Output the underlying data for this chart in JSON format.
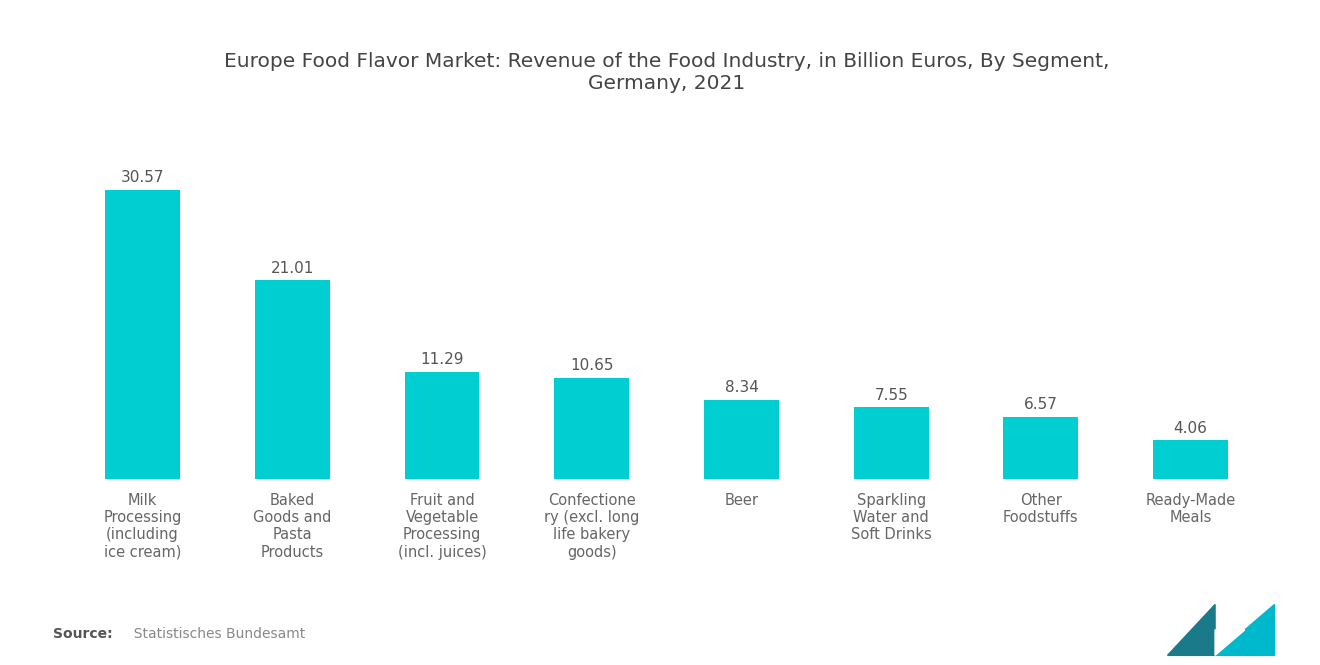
{
  "title": "Europe Food Flavor Market: Revenue of the Food Industry, in Billion Euros, By Segment,\nGermany, 2021",
  "categories": [
    "Milk\nProcessing\n(including\nice cream)",
    "Baked\nGoods and\nPasta\nProducts",
    "Fruit and\nVegetable\nProcessing\n(incl. juices)",
    "Confectione\nry (excl. long\nlife bakery\ngoods)",
    "Beer",
    "Sparkling\nWater and\nSoft Drinks",
    "Other\nFoodstuffs",
    "Ready-Made\nMeals"
  ],
  "values": [
    30.57,
    21.01,
    11.29,
    10.65,
    8.34,
    7.55,
    6.57,
    4.06
  ],
  "bar_color": "#00CED1",
  "value_labels": [
    "30.57",
    "21.01",
    "11.29",
    "10.65",
    "8.34",
    "7.55",
    "6.57",
    "4.06"
  ],
  "source_bold": "Source:",
  "source_text": "  Statistisches Bundesamt",
  "background_color": "#ffffff",
  "title_fontsize": 14.5,
  "label_fontsize": 10.5,
  "value_fontsize": 11,
  "source_fontsize": 10,
  "ylim": [
    0,
    38
  ],
  "title_color": "#444444",
  "label_color": "#666666",
  "value_color": "#555555"
}
